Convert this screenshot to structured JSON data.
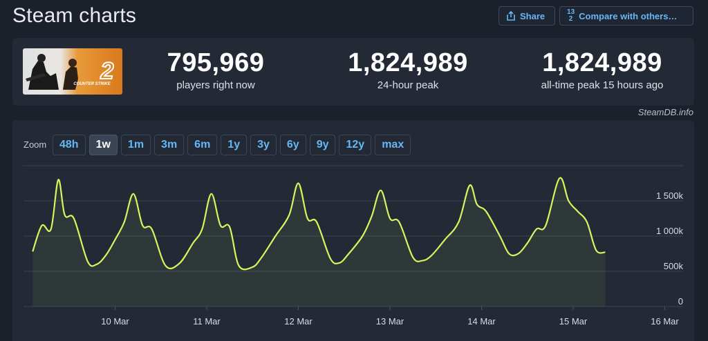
{
  "header": {
    "title": "Steam charts",
    "share_label": "Share",
    "compare_label": "Compare with others…",
    "compare_icon_top": "1",
    "compare_icon_bottom": "2",
    "compare_icon_digit": "3",
    "share_icon": "share-icon",
    "accent_color": "#67b7f5"
  },
  "stats": {
    "game_image": {
      "subject": "counter-strike-2-capsule",
      "logo_text": "COUNTER STRIKE",
      "logo_numeral": "2"
    },
    "current": {
      "value": "795,969",
      "label": "players right now"
    },
    "peak_24h": {
      "value": "1,824,989",
      "label": "24-hour peak"
    },
    "peak_all_time": {
      "value": "1,824,989",
      "label": "all-time peak 15 hours ago"
    }
  },
  "attribution": "SteamDB.info",
  "zoom": {
    "label": "Zoom",
    "options": [
      "48h",
      "1w",
      "1m",
      "3m",
      "6m",
      "1y",
      "3y",
      "6y",
      "9y",
      "12y",
      "max"
    ],
    "selected": "1w"
  },
  "chart_data": {
    "type": "area",
    "line_color": "#d7f55e",
    "x_tick_labels": [
      "10 Mar",
      "11 Mar",
      "12 Mar",
      "13 Mar",
      "14 Mar",
      "15 Mar",
      "16 Mar"
    ],
    "y_tick_labels": [
      "0",
      "500k",
      "1 000k",
      "1 500k"
    ],
    "ylim": [
      0,
      2000000
    ],
    "grid": true,
    "series": [
      {
        "values": [
          [
            9.1,
            780000
          ],
          [
            9.2,
            1150000
          ],
          [
            9.3,
            1100000
          ],
          [
            9.38,
            1800000
          ],
          [
            9.45,
            1300000
          ],
          [
            9.55,
            1250000
          ],
          [
            9.7,
            640000
          ],
          [
            9.8,
            600000
          ],
          [
            9.9,
            730000
          ],
          [
            10.0,
            950000
          ],
          [
            10.1,
            1200000
          ],
          [
            10.2,
            1600000
          ],
          [
            10.3,
            1150000
          ],
          [
            10.4,
            1100000
          ],
          [
            10.55,
            580000
          ],
          [
            10.7,
            610000
          ],
          [
            10.85,
            900000
          ],
          [
            10.95,
            1100000
          ],
          [
            11.05,
            1600000
          ],
          [
            11.15,
            1150000
          ],
          [
            11.25,
            1130000
          ],
          [
            11.35,
            580000
          ],
          [
            11.5,
            560000
          ],
          [
            11.6,
            700000
          ],
          [
            11.75,
            1000000
          ],
          [
            11.9,
            1300000
          ],
          [
            12.0,
            1750000
          ],
          [
            12.1,
            1250000
          ],
          [
            12.2,
            1200000
          ],
          [
            12.35,
            680000
          ],
          [
            12.45,
            620000
          ],
          [
            12.55,
            750000
          ],
          [
            12.7,
            1000000
          ],
          [
            12.8,
            1280000
          ],
          [
            12.9,
            1650000
          ],
          [
            13.0,
            1250000
          ],
          [
            13.1,
            1200000
          ],
          [
            13.25,
            700000
          ],
          [
            13.35,
            650000
          ],
          [
            13.45,
            720000
          ],
          [
            13.6,
            950000
          ],
          [
            13.75,
            1200000
          ],
          [
            13.87,
            1720000
          ],
          [
            13.95,
            1450000
          ],
          [
            14.05,
            1350000
          ],
          [
            14.2,
            1000000
          ],
          [
            14.3,
            750000
          ],
          [
            14.4,
            750000
          ],
          [
            14.5,
            900000
          ],
          [
            14.6,
            1100000
          ],
          [
            14.7,
            1150000
          ],
          [
            14.85,
            1820000
          ],
          [
            14.95,
            1500000
          ],
          [
            15.05,
            1350000
          ],
          [
            15.15,
            1200000
          ],
          [
            15.25,
            800000
          ],
          [
            15.35,
            770000
          ]
        ]
      }
    ]
  }
}
